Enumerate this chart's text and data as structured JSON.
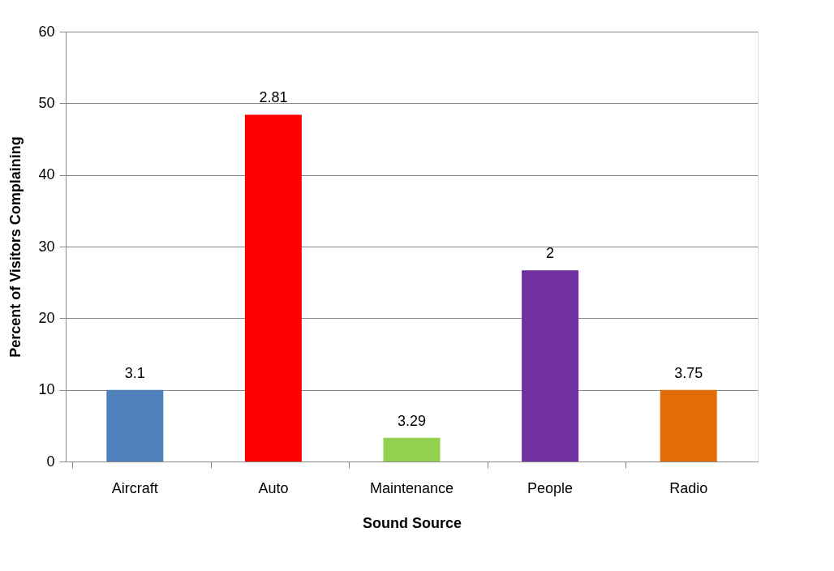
{
  "chart_data": {
    "type": "bar",
    "xlabel": "Sound Source",
    "ylabel": "Percent of Visitors Complaining",
    "categories": [
      "Aircraft",
      "Auto",
      "Maintenance",
      "People",
      "Radio"
    ],
    "values": [
      10,
      48.4,
      3.3,
      26.7,
      10
    ],
    "colors": [
      "#4f81bd",
      "#ff0000",
      "#92d050",
      "#7030a0",
      "#e36c09"
    ],
    "annotations": [
      {
        "text": "3.1",
        "x": "Aircraft",
        "y": 10
      },
      {
        "text": "2.81",
        "x": "Auto",
        "y": 48.4
      },
      {
        "text": "3.29",
        "x": "Maintenance",
        "y": 3.3
      },
      {
        "text": "2",
        "x": "People",
        "y": 26.7
      },
      {
        "text": "3.75",
        "x": "Radio",
        "y": 10
      }
    ],
    "ylim": [
      0,
      60
    ],
    "yticks": [
      0,
      10,
      20,
      30,
      40,
      50,
      60
    ],
    "grid": "y"
  }
}
